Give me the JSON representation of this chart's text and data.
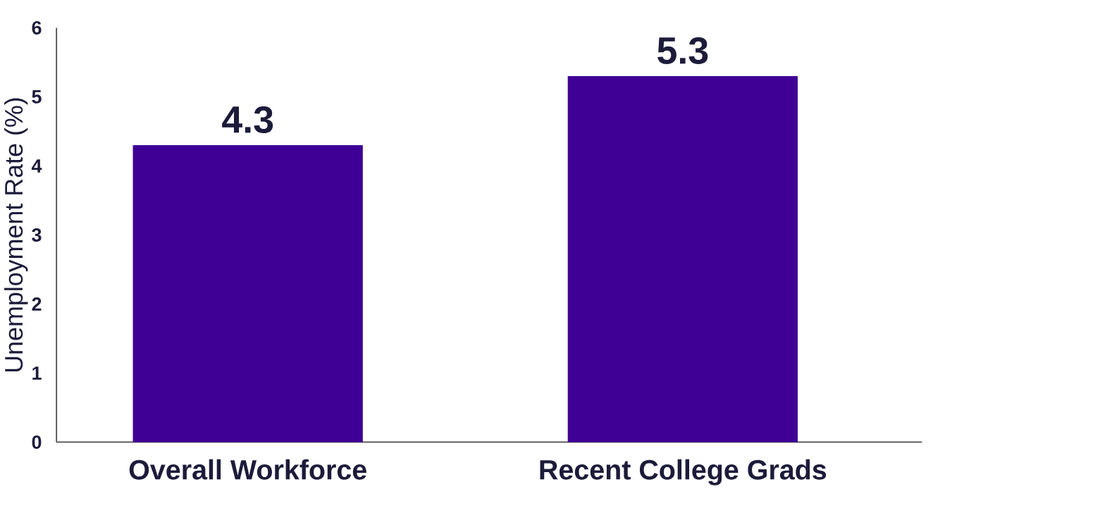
{
  "chart_data": {
    "type": "bar",
    "categories": [
      "Overall Workforce",
      "Recent College Grads"
    ],
    "values": [
      4.3,
      5.3
    ],
    "color": "#3f0095",
    "ylabel": "Unemployment Rate (%)",
    "ylim": [
      0,
      6
    ],
    "yticks": [
      0,
      1,
      2,
      3,
      4,
      5,
      6
    ],
    "data_labels": true
  }
}
